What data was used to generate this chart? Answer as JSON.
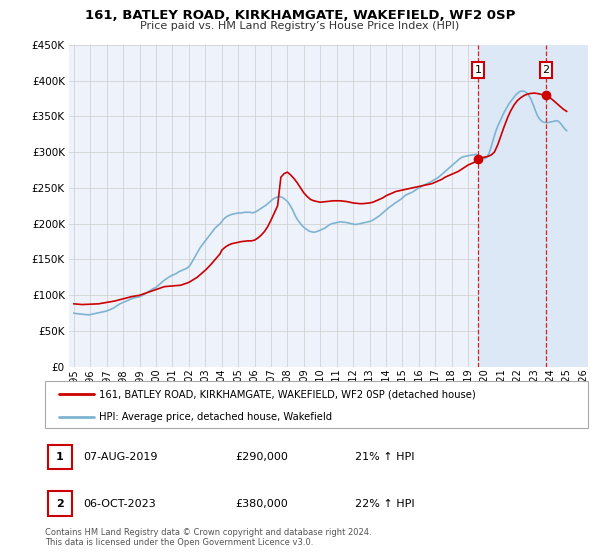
{
  "title": "161, BATLEY ROAD, KIRKHAMGATE, WAKEFIELD, WF2 0SP",
  "subtitle": "Price paid vs. HM Land Registry’s House Price Index (HPI)",
  "legend_line1": "161, BATLEY ROAD, KIRKHAMGATE, WAKEFIELD, WF2 0SP (detached house)",
  "legend_line2": "HPI: Average price, detached house, Wakefield",
  "footnote": "Contains HM Land Registry data © Crown copyright and database right 2024.\nThis data is licensed under the Open Government Licence v3.0.",
  "annotation1_label": "1",
  "annotation1_date": "07-AUG-2019",
  "annotation1_price": "£290,000",
  "annotation1_hpi": "21% ↑ HPI",
  "annotation2_label": "2",
  "annotation2_date": "06-OCT-2023",
  "annotation2_price": "£380,000",
  "annotation2_hpi": "22% ↑ HPI",
  "red_color": "#cc0000",
  "blue_color": "#7fb3d3",
  "shade_color": "#dce8f5",
  "grid_color": "#cccccc",
  "bg_color": "#eef3fb",
  "vline1_x": 2019.6,
  "vline2_x": 2023.75,
  "marker1_x": 2019.6,
  "marker1_y": 290000,
  "marker2_x": 2023.75,
  "marker2_y": 380000,
  "xlim_left": 1994.7,
  "xlim_right": 2026.3,
  "ylim": [
    0,
    450000
  ],
  "hpi_x": [
    1995.0,
    1995.1,
    1995.2,
    1995.3,
    1995.4,
    1995.5,
    1995.6,
    1995.7,
    1995.8,
    1995.9,
    1996.0,
    1996.1,
    1996.2,
    1996.3,
    1996.4,
    1996.5,
    1996.6,
    1996.7,
    1996.8,
    1996.9,
    1997.0,
    1997.1,
    1997.2,
    1997.3,
    1997.4,
    1997.5,
    1997.6,
    1997.7,
    1997.8,
    1997.9,
    1998.0,
    1998.1,
    1998.2,
    1998.3,
    1998.4,
    1998.5,
    1998.6,
    1998.7,
    1998.8,
    1998.9,
    1999.0,
    1999.1,
    1999.2,
    1999.3,
    1999.4,
    1999.5,
    1999.6,
    1999.7,
    1999.8,
    1999.9,
    2000.0,
    2000.1,
    2000.2,
    2000.3,
    2000.4,
    2000.5,
    2000.6,
    2000.7,
    2000.8,
    2000.9,
    2001.0,
    2001.1,
    2001.2,
    2001.3,
    2001.4,
    2001.5,
    2001.6,
    2001.7,
    2001.8,
    2001.9,
    2002.0,
    2002.1,
    2002.2,
    2002.3,
    2002.4,
    2002.5,
    2002.6,
    2002.7,
    2002.8,
    2002.9,
    2003.0,
    2003.1,
    2003.2,
    2003.3,
    2003.4,
    2003.5,
    2003.6,
    2003.7,
    2003.8,
    2003.9,
    2004.0,
    2004.1,
    2004.2,
    2004.3,
    2004.4,
    2004.5,
    2004.6,
    2004.7,
    2004.8,
    2004.9,
    2005.0,
    2005.1,
    2005.2,
    2005.3,
    2005.4,
    2005.5,
    2005.6,
    2005.7,
    2005.8,
    2005.9,
    2006.0,
    2006.1,
    2006.2,
    2006.3,
    2006.4,
    2006.5,
    2006.6,
    2006.7,
    2006.8,
    2006.9,
    2007.0,
    2007.1,
    2007.2,
    2007.3,
    2007.4,
    2007.5,
    2007.6,
    2007.7,
    2007.8,
    2007.9,
    2008.0,
    2008.1,
    2008.2,
    2008.3,
    2008.4,
    2008.5,
    2008.6,
    2008.7,
    2008.8,
    2008.9,
    2009.0,
    2009.1,
    2009.2,
    2009.3,
    2009.4,
    2009.5,
    2009.6,
    2009.7,
    2009.8,
    2009.9,
    2010.0,
    2010.1,
    2010.2,
    2010.3,
    2010.4,
    2010.5,
    2010.6,
    2010.7,
    2010.8,
    2010.9,
    2011.0,
    2011.1,
    2011.2,
    2011.3,
    2011.4,
    2011.5,
    2011.6,
    2011.7,
    2011.8,
    2011.9,
    2012.0,
    2012.1,
    2012.2,
    2012.3,
    2012.4,
    2012.5,
    2012.6,
    2012.7,
    2012.8,
    2012.9,
    2013.0,
    2013.1,
    2013.2,
    2013.3,
    2013.4,
    2013.5,
    2013.6,
    2013.7,
    2013.8,
    2013.9,
    2014.0,
    2014.1,
    2014.2,
    2014.3,
    2014.4,
    2014.5,
    2014.6,
    2014.7,
    2014.8,
    2014.9,
    2015.0,
    2015.1,
    2015.2,
    2015.3,
    2015.4,
    2015.5,
    2015.6,
    2015.7,
    2015.8,
    2015.9,
    2016.0,
    2016.1,
    2016.2,
    2016.3,
    2016.4,
    2016.5,
    2016.6,
    2016.7,
    2016.8,
    2016.9,
    2017.0,
    2017.1,
    2017.2,
    2017.3,
    2017.4,
    2017.5,
    2017.6,
    2017.7,
    2017.8,
    2017.9,
    2018.0,
    2018.1,
    2018.2,
    2018.3,
    2018.4,
    2018.5,
    2018.6,
    2018.7,
    2018.8,
    2018.9,
    2019.0,
    2019.1,
    2019.2,
    2019.3,
    2019.4,
    2019.5,
    2019.6,
    2019.7,
    2019.8,
    2019.9,
    2020.0,
    2020.1,
    2020.2,
    2020.3,
    2020.4,
    2020.5,
    2020.6,
    2020.7,
    2020.8,
    2020.9,
    2021.0,
    2021.1,
    2021.2,
    2021.3,
    2021.4,
    2021.5,
    2021.6,
    2021.7,
    2021.8,
    2021.9,
    2022.0,
    2022.1,
    2022.2,
    2022.3,
    2022.4,
    2022.5,
    2022.6,
    2022.7,
    2022.8,
    2022.9,
    2023.0,
    2023.1,
    2023.2,
    2023.3,
    2023.4,
    2023.5,
    2023.6,
    2023.7,
    2023.8,
    2023.9,
    2024.0,
    2024.1,
    2024.2,
    2024.3,
    2024.4,
    2024.5,
    2024.6,
    2024.7,
    2024.8,
    2024.9,
    2025.0
  ],
  "hpi_y": [
    75000,
    74500,
    74200,
    74000,
    73800,
    73500,
    73200,
    73000,
    72800,
    72500,
    73000,
    73500,
    74000,
    74500,
    75000,
    75500,
    76000,
    76500,
    77000,
    77500,
    78000,
    79000,
    80000,
    81000,
    82000,
    83500,
    85000,
    86500,
    88000,
    89000,
    90000,
    91000,
    92000,
    93000,
    94000,
    95000,
    96000,
    96500,
    97000,
    97500,
    98000,
    99000,
    100000,
    101500,
    103000,
    104500,
    106000,
    107500,
    109000,
    110000,
    111000,
    113000,
    115000,
    117000,
    119000,
    121000,
    122500,
    124000,
    125500,
    127000,
    128000,
    129000,
    130000,
    131500,
    133000,
    134000,
    135000,
    136000,
    137000,
    138000,
    140000,
    143000,
    147000,
    151000,
    155000,
    159000,
    163000,
    167000,
    170000,
    173000,
    176000,
    179000,
    182000,
    185000,
    188000,
    191000,
    194000,
    196000,
    198000,
    200000,
    203000,
    206000,
    208000,
    210000,
    211000,
    212000,
    213000,
    213500,
    214000,
    214500,
    215000,
    215000,
    215000,
    215500,
    216000,
    216000,
    216000,
    216000,
    215500,
    215000,
    216000,
    217000,
    218500,
    220000,
    221500,
    223000,
    224500,
    226000,
    228000,
    230000,
    232000,
    234000,
    235500,
    236500,
    237500,
    238000,
    237500,
    236500,
    235000,
    233000,
    231000,
    228000,
    224000,
    220000,
    215000,
    210000,
    206000,
    203000,
    200000,
    197000,
    195000,
    193000,
    191500,
    190000,
    189000,
    188500,
    188000,
    188500,
    189000,
    190000,
    191000,
    192000,
    193000,
    194000,
    196000,
    197500,
    199000,
    200000,
    200500,
    201000,
    201500,
    202000,
    202500,
    202500,
    202000,
    202000,
    201500,
    201000,
    200500,
    200000,
    199500,
    199000,
    199000,
    199500,
    200000,
    200500,
    201000,
    201500,
    202000,
    202500,
    203000,
    204000,
    205000,
    206500,
    208000,
    209500,
    211000,
    213000,
    215000,
    217000,
    219000,
    221000,
    223000,
    224500,
    226000,
    228000,
    229500,
    231000,
    232500,
    234000,
    236000,
    238000,
    240000,
    241000,
    242000,
    243000,
    244000,
    245500,
    247000,
    248500,
    250000,
    251000,
    252500,
    254000,
    255000,
    256000,
    257000,
    258000,
    259500,
    261000,
    262000,
    263500,
    265000,
    267000,
    269000,
    271000,
    273000,
    275000,
    277000,
    279000,
    281000,
    283000,
    285000,
    287000,
    289000,
    291000,
    292500,
    293500,
    294000,
    294500,
    295000,
    295500,
    296000,
    296000,
    296500,
    297000,
    296000,
    294500,
    293000,
    292000,
    291000,
    292000,
    295000,
    300000,
    307000,
    315000,
    323000,
    330000,
    336000,
    341000,
    346000,
    351000,
    356000,
    360000,
    364000,
    368000,
    371000,
    374000,
    377000,
    380000,
    382000,
    384000,
    385000,
    385500,
    385000,
    384000,
    382000,
    379000,
    375000,
    370000,
    364000,
    358000,
    352000,
    348000,
    345000,
    343000,
    342000,
    341500,
    341000,
    341500,
    342000,
    342500,
    343000,
    343500,
    344000,
    343000,
    341000,
    338000,
    335000,
    332000,
    330000
  ],
  "red_x": [
    1995.0,
    1995.5,
    1996.0,
    1996.5,
    1997.0,
    1997.5,
    1998.0,
    1998.5,
    1999.0,
    1999.5,
    2000.0,
    2000.5,
    2001.0,
    2001.5,
    2002.0,
    2002.5,
    2003.0,
    2003.3,
    2003.6,
    2003.9,
    2004.0,
    2004.2,
    2004.4,
    2004.6,
    2004.8,
    2005.0,
    2005.2,
    2005.4,
    2005.6,
    2005.8,
    2006.0,
    2006.2,
    2006.4,
    2006.6,
    2006.8,
    2007.0,
    2007.2,
    2007.4,
    2007.6,
    2007.8,
    2008.0,
    2008.2,
    2008.4,
    2008.6,
    2008.8,
    2009.0,
    2009.2,
    2009.4,
    2009.6,
    2009.8,
    2010.0,
    2010.2,
    2010.4,
    2010.6,
    2010.8,
    2011.0,
    2011.2,
    2011.4,
    2011.6,
    2011.8,
    2012.0,
    2012.2,
    2012.4,
    2012.6,
    2012.8,
    2013.0,
    2013.2,
    2013.4,
    2013.6,
    2013.8,
    2014.0,
    2014.2,
    2014.4,
    2014.6,
    2014.8,
    2015.0,
    2015.2,
    2015.4,
    2015.6,
    2015.8,
    2016.0,
    2016.2,
    2016.4,
    2016.6,
    2016.8,
    2017.0,
    2017.2,
    2017.4,
    2017.6,
    2017.8,
    2018.0,
    2018.2,
    2018.4,
    2018.6,
    2018.8,
    2019.0,
    2019.2,
    2019.4,
    2019.6,
    2019.8,
    2020.0,
    2020.2,
    2020.4,
    2020.6,
    2020.8,
    2021.0,
    2021.2,
    2021.4,
    2021.6,
    2021.8,
    2022.0,
    2022.2,
    2022.4,
    2022.6,
    2022.8,
    2023.0,
    2023.2,
    2023.4,
    2023.6,
    2023.75,
    2023.9,
    2024.0,
    2024.2,
    2024.4,
    2024.6,
    2024.8,
    2025.0
  ],
  "red_y": [
    88000,
    87000,
    87500,
    88000,
    90000,
    92000,
    95000,
    98000,
    100000,
    104000,
    108000,
    112000,
    113000,
    114000,
    118000,
    125000,
    135000,
    142000,
    150000,
    158000,
    163000,
    167000,
    170000,
    172000,
    173000,
    174000,
    175000,
    175500,
    176000,
    176000,
    177000,
    180000,
    184000,
    189000,
    196000,
    205000,
    215000,
    225000,
    265000,
    270000,
    272000,
    268000,
    263000,
    257000,
    250000,
    243000,
    238000,
    234000,
    232000,
    231000,
    230000,
    230500,
    231000,
    231500,
    232000,
    232000,
    232000,
    231500,
    231000,
    230000,
    229000,
    228500,
    228000,
    228000,
    228500,
    229000,
    230000,
    232000,
    234000,
    236000,
    239000,
    241000,
    243000,
    245000,
    246000,
    247000,
    248000,
    249000,
    250000,
    251000,
    252000,
    253000,
    254000,
    255000,
    256000,
    258000,
    260000,
    262000,
    265000,
    267000,
    269000,
    271000,
    273000,
    276000,
    279000,
    282000,
    284000,
    286000,
    290000,
    292000,
    293000,
    294000,
    296000,
    300000,
    310000,
    323000,
    336000,
    348000,
    358000,
    366000,
    372000,
    376000,
    379000,
    381000,
    382000,
    382500,
    382000,
    381000,
    380000,
    380000,
    378000,
    376000,
    372000,
    368000,
    364000,
    360000,
    357000
  ]
}
